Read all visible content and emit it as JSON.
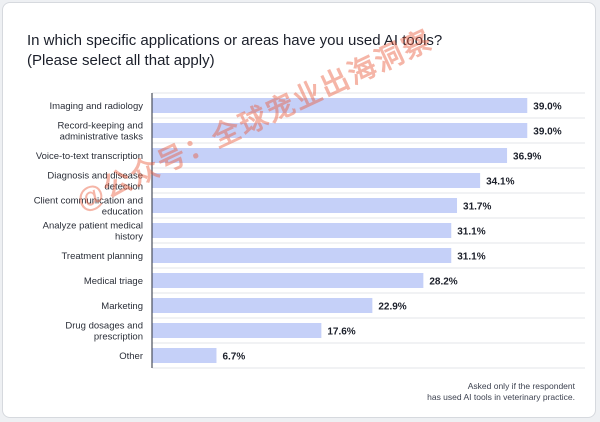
{
  "title": {
    "line1": "In which specific applications or areas have you used AI tools?",
    "line2": "(Please select all that apply)"
  },
  "footnote": {
    "line1": "Asked only if the respondent",
    "line2": "has used AI tools in veterinary practice."
  },
  "watermark": "@公众号：全球宠业出海洞察",
  "colors": {
    "bar": "#c5d0f8",
    "axis": "#4a4f5c",
    "grid": "#e3e5e9"
  },
  "chart_data": {
    "type": "bar",
    "orientation": "horizontal",
    "xlim": [
      0,
      45
    ],
    "categories": [
      [
        "Imaging and radiology"
      ],
      [
        "Record-keeping and",
        "administrative tasks"
      ],
      [
        "Voice-to-text transcription"
      ],
      [
        "Diagnosis and disease",
        "detection"
      ],
      [
        "Client communication and",
        "education"
      ],
      [
        "Analyze patient medical",
        "history"
      ],
      [
        "Treatment planning"
      ],
      [
        "Medical triage"
      ],
      [
        "Marketing"
      ],
      [
        "Drug dosages and",
        "prescription"
      ],
      [
        "Other"
      ]
    ],
    "values": [
      39.0,
      39.0,
      36.9,
      34.1,
      31.7,
      31.1,
      31.1,
      28.2,
      22.9,
      17.6,
      6.7
    ],
    "value_labels": [
      "39.0%",
      "39.0%",
      "36.9%",
      "34.1%",
      "31.7%",
      "31.1%",
      "31.1%",
      "28.2%",
      "22.9%",
      "17.6%",
      "6.7%"
    ],
    "grid": true,
    "legend": "none"
  }
}
